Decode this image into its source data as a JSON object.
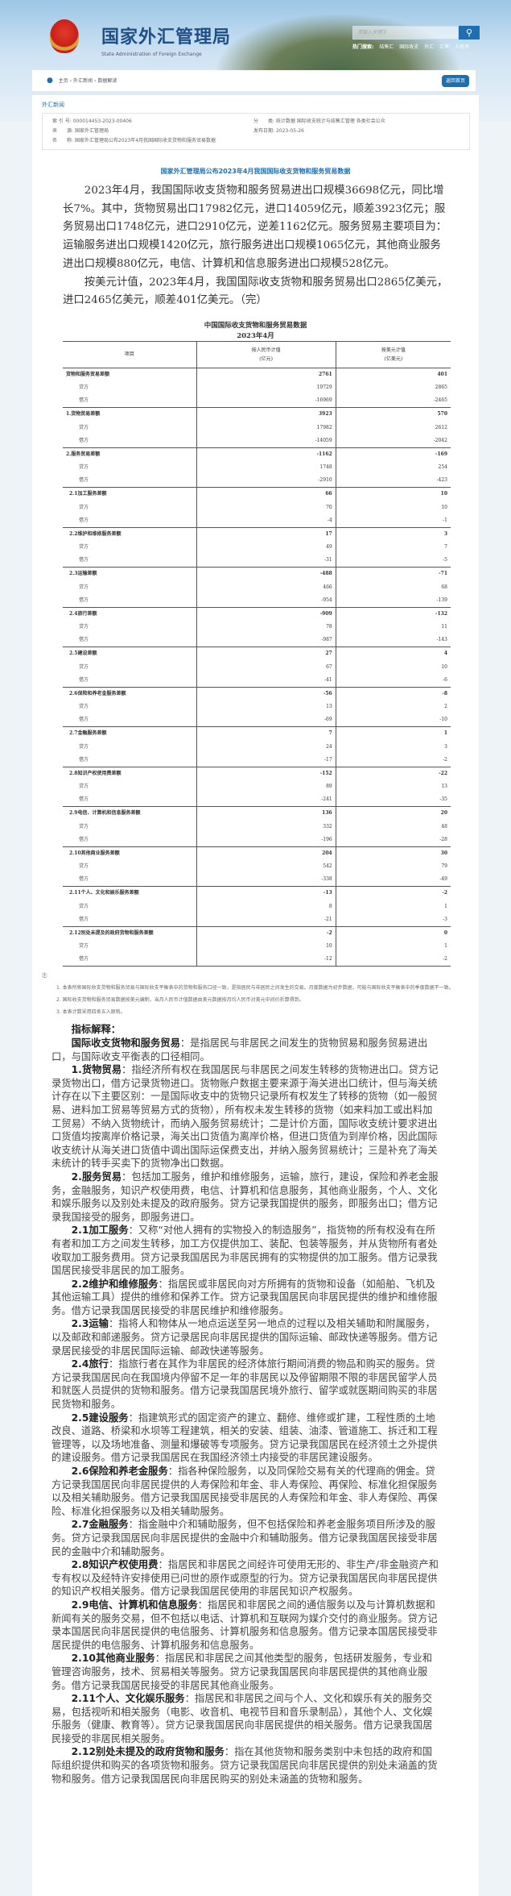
{
  "header": {
    "title_cn": "国家外汇管理局",
    "title_en": "State Administration of Foreign Exchange",
    "search_placeholder": "请输入关键字",
    "hot_label": "热门搜索:",
    "hot_links": [
      "结售汇",
      "国际收支",
      "外汇",
      "汇率",
      "人民币"
    ]
  },
  "breadcrumb": {
    "items": [
      "主页",
      "外汇新闻",
      "数据解读"
    ],
    "separator": "›",
    "back_label": "返回首页"
  },
  "section_label": "外汇新闻",
  "meta": {
    "index_label": "索 引 号:",
    "index": "000014453-2023-00406",
    "category_label": "分　　类:",
    "category": "统计数据  国际收支统计与结售汇管理  各类社会公众",
    "source_label": "来　　源:",
    "source": "国家外汇管理局",
    "date_label": "发布日期:",
    "date": "2023-05-26",
    "name_label": "名　　称:",
    "name": "国家外汇管理局公布2023年4月我国国际收支货物和服务贸易数据"
  },
  "article": {
    "title": "国家外汇管理局公布2023年4月我国国际收支货物和服务贸易数据",
    "paragraphs": [
      "2023年4月，我国国际收支货物和服务贸易进出口规模36698亿元，同比增长7%。其中，货物贸易出口17982亿元，进口14059亿元，顺差3923亿元；服务贸易出口1748亿元，进口2910亿元，逆差1162亿元。服务贸易主要项目为：运输服务进出口规模1420亿元，旅行服务进出口规模1065亿元，其他商业服务进出口规模880亿元，电信、计算机和信息服务进出口规模528亿元。",
      "按美元计值，2023年4月，我国国际收支货物和服务贸易出口2865亿美元，进口2465亿美元，顺差401亿美元。（完）"
    ]
  },
  "table": {
    "title": "中国国际收支货物和服务贸易数据",
    "date": "2023年4月",
    "col_item": "项目",
    "col_rmb": "按人民币计值",
    "col_rmb_unit": "(亿元)",
    "col_usd": "按美元计值",
    "col_usd_unit": "(亿美元)",
    "credit_label": "贷方",
    "debit_label": "借方",
    "groups": [
      {
        "name": "货物和服务贸易差额",
        "rmb": [
          "2761",
          "19729",
          "-16969"
        ],
        "usd": [
          "401",
          "2865",
          "-2465"
        ]
      },
      {
        "name": "1.货物贸易差额",
        "rmb": [
          "3923",
          "17982",
          "-14059"
        ],
        "usd": [
          "570",
          "2612",
          "-2042"
        ]
      },
      {
        "name": "2.服务贸易差额",
        "rmb": [
          "-1162",
          "1748",
          "-2910"
        ],
        "usd": [
          "-169",
          "254",
          "-423"
        ]
      },
      {
        "name": "2.1加工服务差额",
        "rmb": [
          "66",
          "70",
          "-4"
        ],
        "usd": [
          "10",
          "10",
          "-1"
        ]
      },
      {
        "name": "2.2维护和维修服务差额",
        "rmb": [
          "17",
          "49",
          "-31"
        ],
        "usd": [
          "3",
          "7",
          "-5"
        ]
      },
      {
        "name": "2.3运输差额",
        "rmb": [
          "-488",
          "466",
          "-954"
        ],
        "usd": [
          "-71",
          "68",
          "-139"
        ]
      },
      {
        "name": "2.4旅行差额",
        "rmb": [
          "-909",
          "78",
          "-987"
        ],
        "usd": [
          "-132",
          "11",
          "-143"
        ]
      },
      {
        "name": "2.5建设差额",
        "rmb": [
          "27",
          "67",
          "-41"
        ],
        "usd": [
          "4",
          "10",
          "-6"
        ]
      },
      {
        "name": "2.6保险和养老金服务差额",
        "rmb": [
          "-56",
          "13",
          "-69"
        ],
        "usd": [
          "-8",
          "2",
          "-10"
        ]
      },
      {
        "name": "2.7金融服务差额",
        "rmb": [
          "7",
          "24",
          "-17"
        ],
        "usd": [
          "1",
          "3",
          "-2"
        ]
      },
      {
        "name": "2.8知识产权使用费差额",
        "rmb": [
          "-152",
          "89",
          "-241"
        ],
        "usd": [
          "-22",
          "13",
          "-35"
        ]
      },
      {
        "name": "2.9电信、计算机和信息服务差额",
        "rmb": [
          "136",
          "332",
          "-196"
        ],
        "usd": [
          "20",
          "48",
          "-28"
        ]
      },
      {
        "name": "2.10其他商业服务差额",
        "rmb": [
          "204",
          "542",
          "-338"
        ],
        "usd": [
          "30",
          "79",
          "-49"
        ]
      },
      {
        "name": "2.11个人、文化和娱乐服务差额",
        "rmb": [
          "-13",
          "8",
          "-21"
        ],
        "usd": [
          "-2",
          "1",
          "-3"
        ]
      },
      {
        "name": "2.12别处未提及的政府货物和服务差额",
        "rmb": [
          "-2",
          "10",
          "-12"
        ],
        "usd": [
          "0",
          "1",
          "-2"
        ]
      }
    ]
  },
  "notes": {
    "label": "注:",
    "items": [
      "1. 本表所称国际收支货物和服务贸易与国际收支平衡表中的货物和服务口径一致，是指居民与非居民之间发生的交易。月度数据为初步数据，可能与国际收支平衡表中的季度数据不一致。",
      "2. 国际收支货物和服务贸易数据按美元编制，当月人民币计值数据由美元数据按月均人民币对美元中间价折算得到。",
      "3. 本表计数采用四舍五入原则。"
    ]
  },
  "explanations": {
    "heading": "指标解释：",
    "items": [
      {
        "term": "国际收支货物和服务贸易",
        "text": "：是指居民与非居民之间发生的货物贸易和服务贸易进出口，与国际收支平衡表的口径相同。"
      },
      {
        "term": "1.货物贸易",
        "text": "：指经济所有权在我国居民与非居民之间发生转移的货物进出口。贷方记录货物出口，借方记录货物进口。货物账户数据主要来源于海关进出口统计，但与海关统计存在以下主要区别：一是国际收支中的货物只记录所有权发生了转移的货物（如一般贸易、进料加工贸易等贸易方式的货物），所有权未发生转移的货物（如来料加工或出料加工贸易）不纳入货物统计，而纳入服务贸易统计；二是计价方面，国际收支统计要求进出口货值均按离岸价格记录，海关出口货值为离岸价格，但进口货值为到岸价格，因此国际收支统计从海关进口货值中调出国际运保费支出，并纳入服务贸易统计；三是补充了海关未统计的转手买卖下的货物净出口数据。"
      },
      {
        "term": "2.服务贸易",
        "text": "：包括加工服务，维护和维修服务，运输，旅行，建设，保险和养老金服务，金融服务，知识产权使用费，电信、计算机和信息服务，其他商业服务，个人、文化和娱乐服务以及别处未提及的政府服务。贷方记录我国提供的服务，即服务出口；借方记录我国接受的服务，即服务进口。"
      },
      {
        "term": "2.1加工服务",
        "text": "：又称“对他人拥有的实物投入的制造服务”，指货物的所有权没有在所有者和加工方之间发生转移，加工方仅提供加工、装配、包装等服务，并从货物所有者处收取加工服务费用。贷方记录我国居民为非居民拥有的实物提供的加工服务。借方记录我国居民接受非居民的加工服务。"
      },
      {
        "term": "2.2维护和维修服务",
        "text": "：指居民或非居民向对方所拥有的货物和设备（如船舶、飞机及其他运输工具）提供的维修和保养工作。贷方记录我国居民向非居民提供的维护和维修服务。借方记录我国居民接受的非居民维护和维修服务。"
      },
      {
        "term": "2.3运输",
        "text": "：指将人和物体从一地点运送至另一地点的过程以及相关辅助和附属服务，以及邮政和邮递服务。贷方记录居民向非居民提供的国际运输、邮政快递等服务。借方记录居民接受的非居民国际运输、邮政快递等服务。"
      },
      {
        "term": "2.4旅行",
        "text": "：指旅行者在其作为非居民的经济体旅行期间消费的物品和购买的服务。贷方记录我国居民向在我国境内停留不足一年的非居民以及停留期限不限的非居民留学人员和就医人员提供的货物和服务。借方记录我国居民境外旅行、留学或就医期间购买的非居民货物和服务。"
      },
      {
        "term": "2.5建设服务",
        "text": "：指建筑形式的固定资产的建立、翻修、维修或扩建，工程性质的土地改良、道路、桥梁和水坝等工程建筑，相关的安装、组装、油漆、管道施工、拆迁和工程管理等，以及场地准备、测量和爆破等专项服务。贷方记录我国居民在经济领土之外提供的建设服务。借方记录我国居民在我国经济领土内接受的非居民建设服务。"
      },
      {
        "term": "2.6保险和养老金服务",
        "text": "：指各种保险服务，以及同保险交易有关的代理商的佣金。贷方记录我国居民向非居民提供的人寿保险和年金、非人寿保险、再保险、标准化担保服务以及相关辅助服务。借方记录我国居民接受非居民的人寿保险和年金、非人寿保险、再保险、标准化担保服务以及相关辅助服务。"
      },
      {
        "term": "2.7金融服务",
        "text": "：指金融中介和辅助服务，但不包括保险和养老金服务项目所涉及的服务。贷方记录我国居民向非居民提供的金融中介和辅助服务。借方记录我国居民接受非居民的金融中介和辅助服务。"
      },
      {
        "term": "2.8知识产权使用费",
        "text": "：指居民和非居民之间经许可使用无形的、非生产/非金融资产和专有权以及经特许安排使用已问世的原作或原型的行为。贷方记录我国居民向非居民提供的知识产权相关服务。借方记录我国居民使用的非居民知识产权服务。"
      },
      {
        "term": "2.9电信、计算机和信息服务",
        "text": "：指居民和非居民之间的通信服务以及与计算机数据和新闻有关的服务交易，但不包括以电话、计算机和互联网为媒介交付的商业服务。贷方记录本国居民向非居民提供的电信服务、计算机服务和信息服务。借方记录本国居民接受非居民提供的电信服务、计算机服务和信息服务。"
      },
      {
        "term": "2.10其他商业服务",
        "text": "：指居民和非居民之间其他类型的服务，包括研发服务，专业和管理咨询服务，技术、贸易相关等服务。贷方记录我国居民向非居民提供的其他商业服务。借方记录我国居民接受的非居民其他商业服务。"
      },
      {
        "term": "2.11个人、文化娱乐服务",
        "text": "：指居民和非居民之间与个人、文化和娱乐有关的服务交易，包括视听和相关服务（电影、收音机、电视节目和音乐录制品），其他个人、文化娱乐服务（健康、教育等）。贷方记录我国居民向非居民提供的相关服务。借方记录我国居民接受的非居民相关服务。"
      },
      {
        "term": "2.12别处未提及的政府货物和服务",
        "text": "：指在其他货物和服务类别中未包括的政府和国际组织提供和购买的各项货物和服务。贷方记录我国居民向非居民提供的别处未涵盖的货物和服务。借方记录我国居民向非居民购买的别处未涵盖的货物和服务。"
      }
    ]
  },
  "colors": {
    "brand": "#1f6fb0",
    "title": "#1f4f86"
  }
}
